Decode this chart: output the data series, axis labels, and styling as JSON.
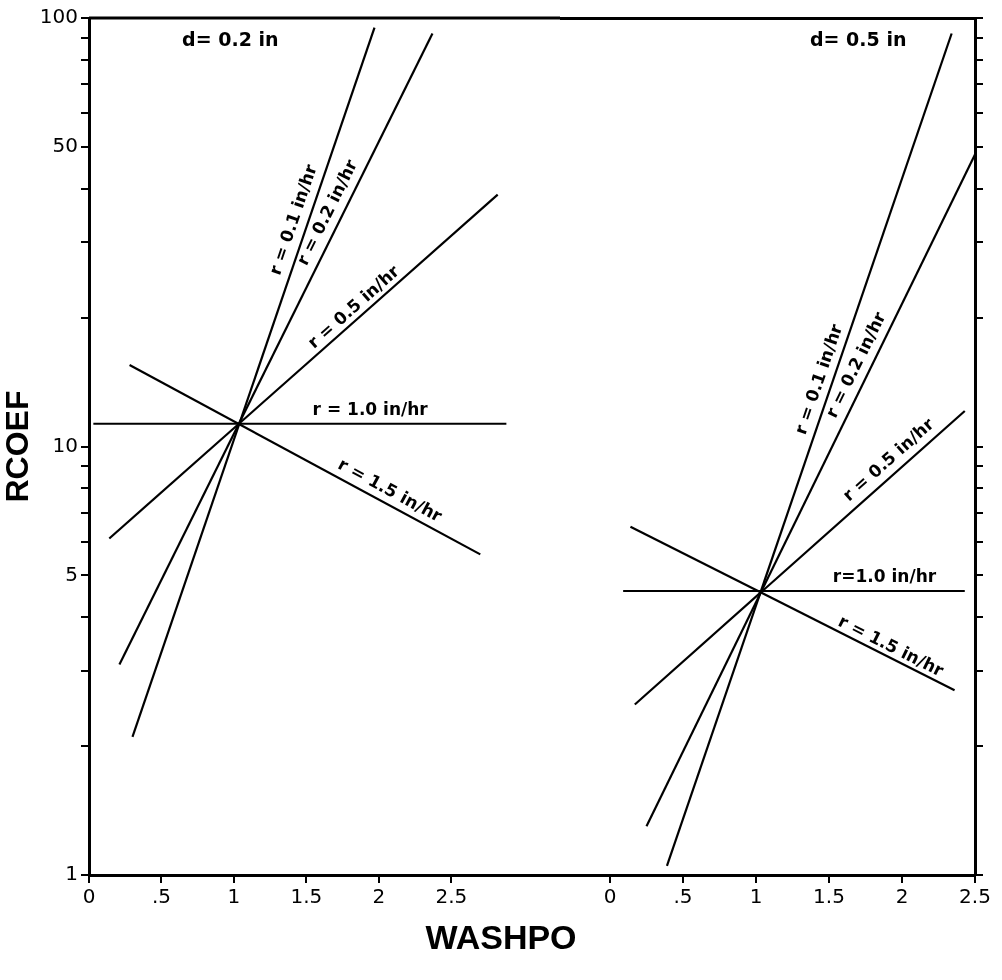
{
  "chart_data": [
    {
      "type": "line",
      "title": "d= 0.2 in",
      "ylabel": "RCOEF",
      "xlabel": "WASHPO",
      "log": "y",
      "marker": "none",
      "xlim": [
        0,
        3.25
      ],
      "xticks": [
        0,
        {
          "value": 0.5,
          "label": ".5"
        },
        1,
        1.5,
        2,
        2.5
      ],
      "ylim": [
        1,
        100
      ],
      "yticks": [
        1,
        {
          "value": 2,
          "label": null
        },
        {
          "value": 3,
          "label": null
        },
        {
          "value": 4,
          "label": null
        },
        5,
        {
          "value": 6,
          "label": null
        },
        {
          "value": 7,
          "label": null
        },
        {
          "value": 8,
          "label": null
        },
        {
          "value": 9,
          "label": null
        },
        10,
        {
          "value": 20,
          "label": null
        },
        {
          "value": 30,
          "label": null
        },
        {
          "value": 40,
          "label": null
        },
        50,
        {
          "value": 60,
          "label": null
        },
        {
          "value": 70,
          "label": null
        },
        {
          "value": 80,
          "label": null
        },
        {
          "value": 90,
          "label": null
        },
        100
      ],
      "series": [
        {
          "color": "#000000",
          "x": [
            0.3,
            1.97
          ],
          "values": [
            2.1,
            95
          ]
        },
        {
          "color": "#000000",
          "x": [
            0.21,
            2.37
          ],
          "values": [
            3.1,
            92
          ]
        },
        {
          "color": "#000000",
          "x": [
            0.14,
            2.82
          ],
          "values": [
            6.1,
            38.7
          ]
        },
        {
          "color": "#000000",
          "x": [
            0.03,
            2.88
          ],
          "values": [
            11.3,
            11.3
          ]
        },
        {
          "color": "#000000",
          "x": [
            0.28,
            2.7
          ],
          "values": [
            15.5,
            5.6
          ]
        }
      ],
      "annotations": [
        {
          "text": "r = 0.1 in/hr",
          "x": 1.5,
          "y": 33
        },
        {
          "text": "r = 0.2 in/hr",
          "x": 1.73,
          "y": 34
        },
        {
          "text": "r = 0.5 in/hr",
          "x": 1.89,
          "y": 20
        },
        {
          "text": "r = 1.0 in/hr",
          "x": 1.94,
          "y": 11.3
        },
        {
          "text": "r = 1.5 in/hr",
          "x": 2.03,
          "y": 7.4
        }
      ]
    },
    {
      "type": "line",
      "title": "d= 0.5 in",
      "log": "y",
      "marker": "none",
      "tick_labels": "x",
      "xlim": [
        0,
        2.5
      ],
      "xticks": [
        0,
        {
          "value": 0.5,
          "label": ".5"
        },
        1,
        1.5,
        2,
        2.5
      ],
      "ylim": [
        1,
        100
      ],
      "yticks": [
        1,
        {
          "value": 2,
          "label": null
        },
        {
          "value": 3,
          "label": null
        },
        {
          "value": 4,
          "label": null
        },
        5,
        {
          "value": 6,
          "label": null
        },
        {
          "value": 7,
          "label": null
        },
        {
          "value": 8,
          "label": null
        },
        {
          "value": 9,
          "label": null
        },
        10,
        {
          "value": 20,
          "label": null
        },
        {
          "value": 30,
          "label": null
        },
        {
          "value": 40,
          "label": null
        },
        50,
        {
          "value": 60,
          "label": null
        },
        {
          "value": 70,
          "label": null
        },
        {
          "value": 80,
          "label": null
        },
        {
          "value": 90,
          "label": null
        },
        100
      ],
      "series": [
        {
          "color": "#000000",
          "x": [
            0.39,
            2.34
          ],
          "values": [
            1.05,
            92
          ]
        },
        {
          "color": "#000000",
          "x": [
            0.25,
            2.5
          ],
          "values": [
            1.3,
            48
          ]
        },
        {
          "color": "#000000",
          "x": [
            0.17,
            2.43
          ],
          "values": [
            2.5,
            12.1
          ]
        },
        {
          "color": "#000000",
          "x": [
            0.09,
            2.43
          ],
          "values": [
            4.6,
            4.6
          ]
        },
        {
          "color": "#000000",
          "x": [
            0.14,
            2.36
          ],
          "values": [
            6.5,
            2.7
          ]
        }
      ],
      "annotations": [
        {
          "text": "r = 0.1 in/hr",
          "x": 1.52,
          "y": 14
        },
        {
          "text": "r = 0.2 in/hr",
          "x": 1.77,
          "y": 15
        },
        {
          "text": "r = 0.5 in/hr",
          "x": 1.97,
          "y": 8.8
        },
        {
          "text": "r=1.0 in/hr",
          "x": 1.88,
          "y": 4.6
        },
        {
          "text": "r = 1.5 in/hr",
          "x": 1.88,
          "y": 3.2
        }
      ]
    }
  ]
}
